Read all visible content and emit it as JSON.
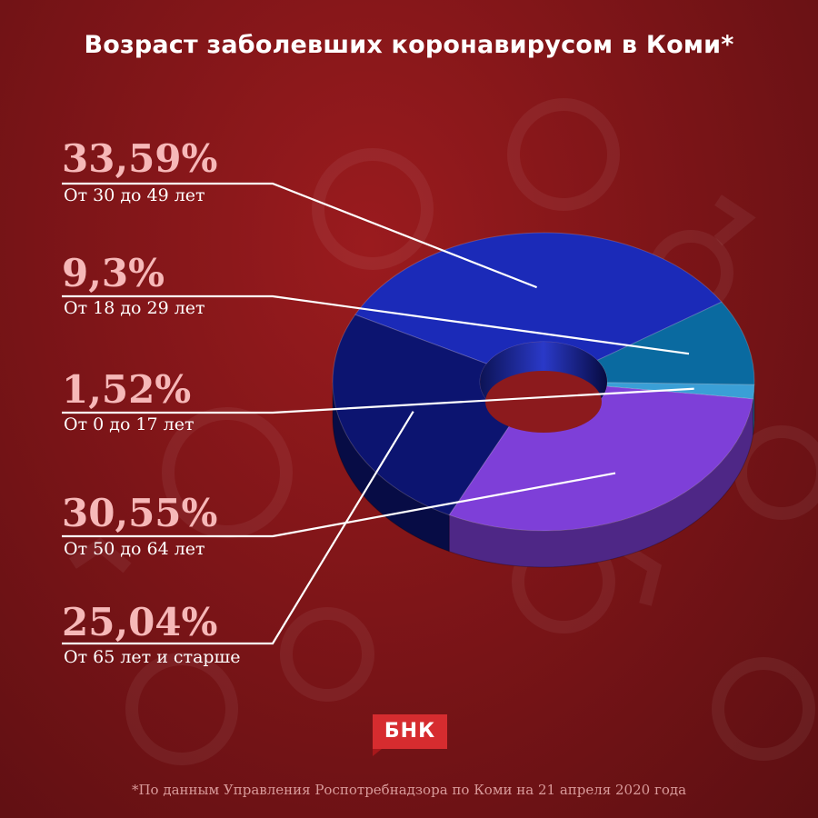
{
  "title": "Возраст заболевших коронавирусом в Коми*",
  "footnote": "*По данным Управления Роспотребнадзора по Коми на 21 апреля 2020 года",
  "logo_text": "БНК",
  "colors": {
    "background": "#7e1518",
    "label_percent": "#f6b8b8",
    "logo": "#d62c2f"
  },
  "chart_data": {
    "type": "pie",
    "style": "3d-donut",
    "slices": [
      {
        "label": "От 30 до 49 лет",
        "value": 33.59,
        "display": "33,59%",
        "color": "#1b2ab8"
      },
      {
        "label": "От 18 до 29 лет",
        "value": 9.3,
        "display": "9,3%",
        "color": "#0a6aa0"
      },
      {
        "label": "От 0 до 17 лет",
        "value": 1.52,
        "display": "1,52%",
        "color": "#3a9fd6"
      },
      {
        "label": "От 50 до 64 лет",
        "value": 30.55,
        "display": "30,55%",
        "color": "#7e3fd8"
      },
      {
        "label": "От 65 лет и старше",
        "value": 25.04,
        "display": "25,04%",
        "color": "#0c1470"
      }
    ]
  }
}
